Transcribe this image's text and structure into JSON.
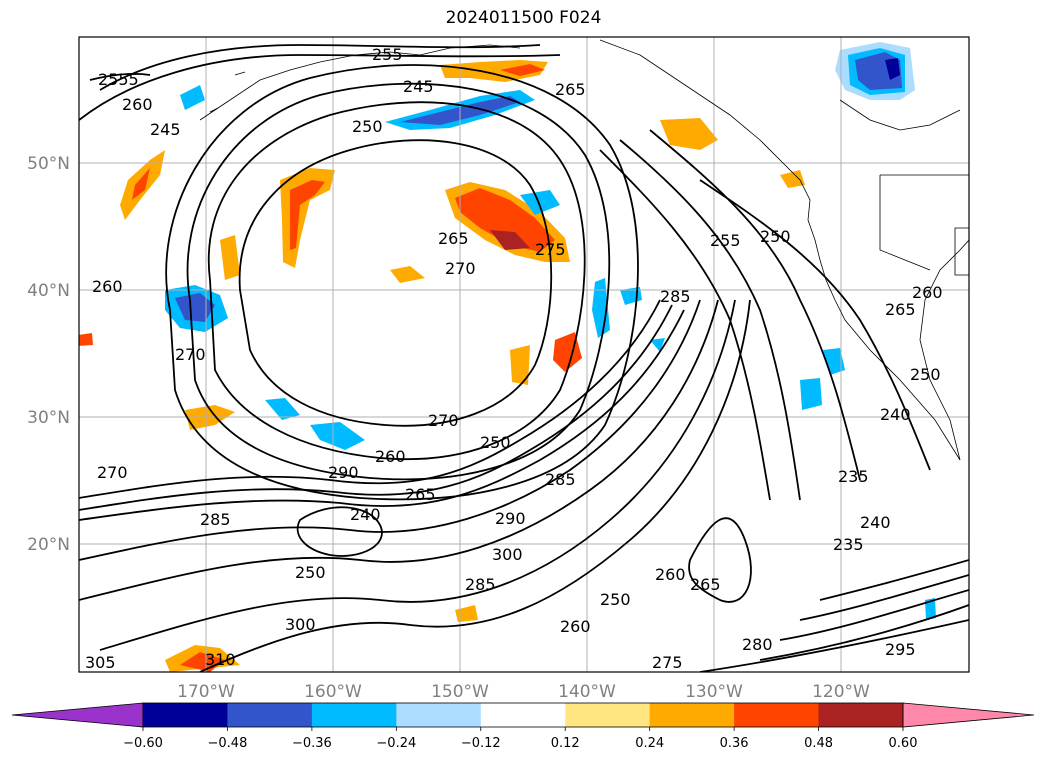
{
  "title": "2024011500 F024",
  "lat_labels": [
    "50°N",
    "40°N",
    "30°N",
    "20°N"
  ],
  "lon_labels": [
    "170°W",
    "160°W",
    "150°W",
    "140°W",
    "130°W",
    "120°W"
  ],
  "colorbar": {
    "ticks": [
      "−0.60",
      "−0.48",
      "−0.36",
      "−0.24",
      "−0.12",
      "0.12",
      "0.24",
      "0.36",
      "0.48",
      "0.60"
    ],
    "colors": [
      "#9933cc",
      "#000099",
      "#3355cc",
      "#00bbff",
      "#aaddff",
      "#ffffff",
      "#ffe680",
      "#ffaa00",
      "#ff4400",
      "#aa2222",
      "#ff88aa"
    ]
  },
  "contour_labels": [
    "2555",
    "260",
    "245",
    "255",
    "265",
    "250",
    "245",
    "265",
    "270",
    "275",
    "260",
    "270",
    "270",
    "250",
    "285",
    "290",
    "265",
    "260",
    "290",
    "240",
    "285",
    "300",
    "250",
    "260",
    "255",
    "250",
    "265",
    "260",
    "250",
    "240",
    "235",
    "240",
    "235",
    "270",
    "275",
    "310",
    "305",
    "295",
    "285",
    "260",
    "280",
    "250",
    "265",
    "300",
    "285"
  ],
  "colors": {
    "contour": "#000000",
    "grid": "#b0b0b0",
    "coast": "#000000",
    "axis_label": "#808080"
  }
}
